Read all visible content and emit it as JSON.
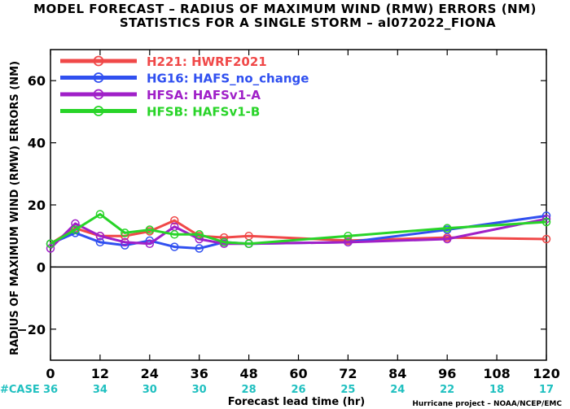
{
  "chart_data": {
    "type": "line",
    "title_line1": "MODEL FORECAST – RADIUS OF MAXIMUM WIND (RMW) ERRORS (NM)",
    "title_line2": "STATISTICS FOR A SINGLE STORM – al072022_FIONA",
    "xlabel": "Forecast lead time (hr)",
    "ylabel": "RADIUS OF MAXIMUM WIND (RMW) ERRORS (NM)",
    "xlim": [
      0,
      120
    ],
    "ylim": [
      -30,
      70
    ],
    "x_ticks": [
      0,
      12,
      24,
      36,
      48,
      60,
      72,
      84,
      96,
      108,
      120
    ],
    "y_ticks": [
      -20,
      0,
      20,
      40,
      60
    ],
    "y_tick_labels": [
      "−20",
      "0",
      "20",
      "40",
      "60"
    ],
    "zero_line": true,
    "case_label": "#CASE",
    "case_counts": [
      "36",
      "34",
      "30",
      "30",
      "28",
      "26",
      "25",
      "24",
      "22",
      "18",
      "17"
    ],
    "credit": "Hurricane project – NOAA/NCEP/EMC",
    "legend_position": "top-left",
    "series": [
      {
        "name": "H221: HWRF2021",
        "color": "#f04848",
        "x": [
          0,
          6,
          12,
          18,
          24,
          30,
          36,
          42,
          48,
          72,
          96,
          120
        ],
        "y": [
          7.5,
          12.5,
          10.0,
          10.0,
          11.5,
          15.0,
          10.0,
          9.5,
          10.0,
          8.5,
          9.5,
          9.0
        ]
      },
      {
        "name": "HG16: HAFS_no_change",
        "color": "#3050f0",
        "x": [
          0,
          6,
          12,
          18,
          24,
          30,
          36,
          42,
          48,
          72,
          96,
          120
        ],
        "y": [
          7.5,
          11.0,
          8.0,
          7.0,
          8.5,
          6.5,
          6.0,
          8.0,
          7.5,
          8.0,
          12.0,
          16.5
        ]
      },
      {
        "name": "HFSA: HAFSv1-A",
        "color": "#a020c8",
        "x": [
          0,
          6,
          12,
          18,
          24,
          30,
          36,
          42,
          48,
          72,
          96,
          120
        ],
        "y": [
          6.0,
          14.0,
          10.0,
          8.0,
          7.5,
          13.0,
          9.0,
          7.5,
          7.5,
          8.0,
          9.0,
          15.5
        ]
      },
      {
        "name": "HFSB: HAFSv1-B",
        "color": "#28d428",
        "x": [
          0,
          6,
          12,
          18,
          24,
          30,
          36,
          42,
          48,
          72,
          96,
          120
        ],
        "y": [
          7.5,
          12.0,
          17.0,
          11.0,
          12.0,
          10.5,
          10.5,
          8.0,
          7.5,
          10.0,
          12.5,
          14.5
        ]
      }
    ]
  }
}
